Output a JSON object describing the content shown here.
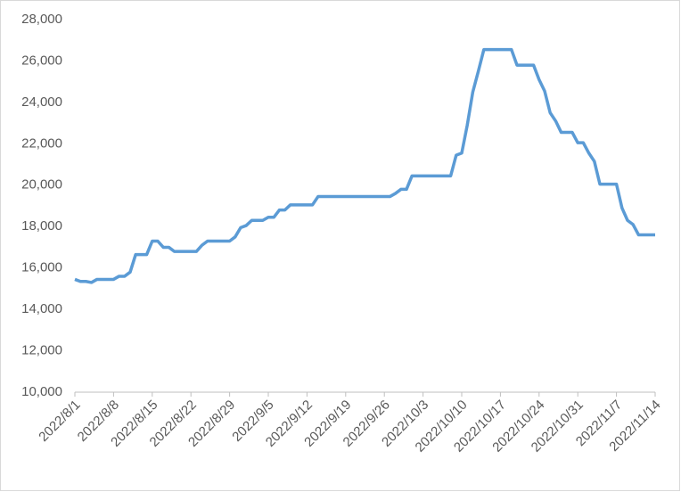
{
  "chart_data": {
    "type": "line",
    "x": [
      "2022/8/1",
      "2022/8/2",
      "2022/8/3",
      "2022/8/4",
      "2022/8/5",
      "2022/8/6",
      "2022/8/7",
      "2022/8/8",
      "2022/8/9",
      "2022/8/10",
      "2022/8/11",
      "2022/8/12",
      "2022/8/13",
      "2022/8/14",
      "2022/8/15",
      "2022/8/16",
      "2022/8/17",
      "2022/8/18",
      "2022/8/19",
      "2022/8/20",
      "2022/8/21",
      "2022/8/22",
      "2022/8/23",
      "2022/8/24",
      "2022/8/25",
      "2022/8/26",
      "2022/8/27",
      "2022/8/28",
      "2022/8/29",
      "2022/8/30",
      "2022/8/31",
      "2022/9/1",
      "2022/9/2",
      "2022/9/3",
      "2022/9/4",
      "2022/9/5",
      "2022/9/6",
      "2022/9/7",
      "2022/9/8",
      "2022/9/9",
      "2022/9/10",
      "2022/9/11",
      "2022/9/12",
      "2022/9/13",
      "2022/9/14",
      "2022/9/15",
      "2022/9/16",
      "2022/9/17",
      "2022/9/18",
      "2022/9/19",
      "2022/9/20",
      "2022/9/21",
      "2022/9/22",
      "2022/9/23",
      "2022/9/24",
      "2022/9/25",
      "2022/9/26",
      "2022/9/27",
      "2022/9/28",
      "2022/9/29",
      "2022/9/30",
      "2022/10/1",
      "2022/10/2",
      "2022/10/3",
      "2022/10/4",
      "2022/10/5",
      "2022/10/6",
      "2022/10/7",
      "2022/10/8",
      "2022/10/9",
      "2022/10/10",
      "2022/10/11",
      "2022/10/12",
      "2022/10/13",
      "2022/10/14",
      "2022/10/15",
      "2022/10/16",
      "2022/10/17",
      "2022/10/18",
      "2022/10/19",
      "2022/10/20",
      "2022/10/21",
      "2022/10/22",
      "2022/10/23",
      "2022/10/24",
      "2022/10/25",
      "2022/10/26",
      "2022/10/27",
      "2022/10/28",
      "2022/10/29",
      "2022/10/30",
      "2022/10/31",
      "2022/11/1",
      "2022/11/2",
      "2022/11/3",
      "2022/11/4",
      "2022/11/5",
      "2022/11/6",
      "2022/11/7",
      "2022/11/8",
      "2022/11/9",
      "2022/11/10",
      "2022/11/11",
      "2022/11/12",
      "2022/11/13",
      "2022/11/14"
    ],
    "series": [
      {
        "color": "#5b9bd5",
        "values": [
          15450,
          15350,
          15350,
          15300,
          15450,
          15450,
          15450,
          15450,
          15600,
          15600,
          15800,
          16650,
          16650,
          16650,
          17300,
          17300,
          17000,
          17000,
          16800,
          16800,
          16800,
          16800,
          16800,
          17100,
          17300,
          17300,
          17300,
          17300,
          17300,
          17500,
          17950,
          18050,
          18300,
          18300,
          18300,
          18450,
          18450,
          18800,
          18800,
          19050,
          19050,
          19050,
          19050,
          19050,
          19450,
          19450,
          19450,
          19450,
          19450,
          19450,
          19450,
          19450,
          19450,
          19450,
          19450,
          19450,
          19450,
          19450,
          19600,
          19800,
          19800,
          20450,
          20450,
          20450,
          20450,
          20450,
          20450,
          20450,
          20450,
          21450,
          21550,
          22900,
          24500,
          25500,
          26550,
          26550,
          26550,
          26550,
          26550,
          26550,
          25800,
          25800,
          25800,
          25800,
          25100,
          24550,
          23500,
          23100,
          22550,
          22550,
          22550,
          22050,
          22050,
          21550,
          21150,
          20050,
          20050,
          20050,
          20050,
          18900,
          18300,
          18100,
          17600,
          17600,
          17600,
          17600
        ]
      }
    ],
    "xlim": [
      "2022/8/1",
      "2022/11/14"
    ],
    "xticks": [
      "2022/8/1",
      "2022/8/8",
      "2022/8/15",
      "2022/8/22",
      "2022/8/29",
      "2022/9/5",
      "2022/9/12",
      "2022/9/19",
      "2022/9/26",
      "2022/10/3",
      "2022/10/10",
      "2022/10/17",
      "2022/10/24",
      "2022/10/31",
      "2022/11/7",
      "2022/11/14"
    ],
    "ylim": [
      10000,
      28000
    ],
    "yticks": [
      {
        "value": 10000,
        "label": "10,000"
      },
      {
        "value": 12000,
        "label": "12,000"
      },
      {
        "value": 14000,
        "label": "14,000"
      },
      {
        "value": 16000,
        "label": "16,000"
      },
      {
        "value": 18000,
        "label": "18,000"
      },
      {
        "value": 20000,
        "label": "20,000"
      },
      {
        "value": 22000,
        "label": "22,000"
      },
      {
        "value": 24000,
        "label": "24,000"
      },
      {
        "value": 26000,
        "label": "26,000"
      },
      {
        "value": 28000,
        "label": "28,000"
      }
    ],
    "grid": false
  }
}
